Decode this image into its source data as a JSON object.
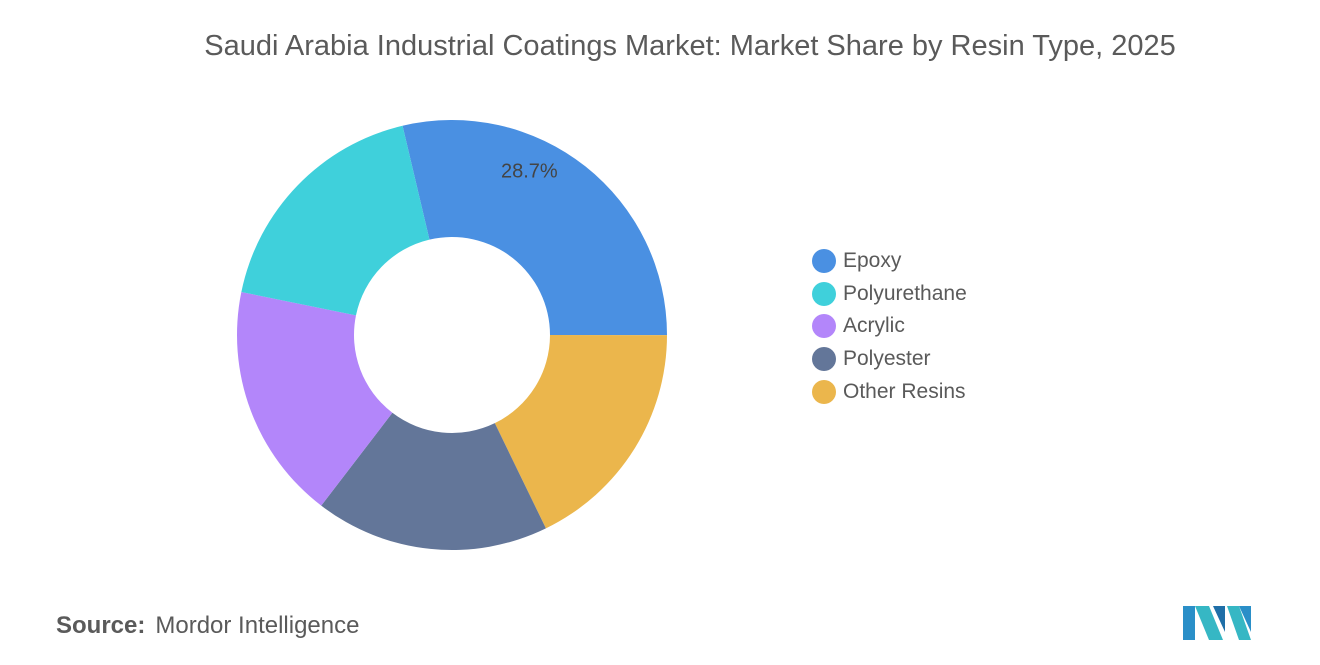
{
  "chart_data": {
    "type": "pie",
    "subtype": "donut",
    "title": "Saudi Arabia Industrial Coatings Market: Market Share by Resin Type, 2025",
    "categories": [
      "Epoxy",
      "Polyurethane",
      "Acrylic",
      "Polyester",
      "Other Resins"
    ],
    "values": [
      28.7,
      18.1,
      17.8,
      17.6,
      17.8
    ],
    "unit": "%",
    "data_labels": {
      "Epoxy": "28.7%"
    },
    "colors": [
      "#4a90e2",
      "#3fd0db",
      "#b386fa",
      "#637699",
      "#ebb64c"
    ],
    "legend_position": "right"
  },
  "source": {
    "label": "Source:",
    "value": "Mordor Intelligence"
  },
  "logo": {
    "text": "Mordor Intelligence",
    "icon": "mordor-intelligence-logo"
  }
}
